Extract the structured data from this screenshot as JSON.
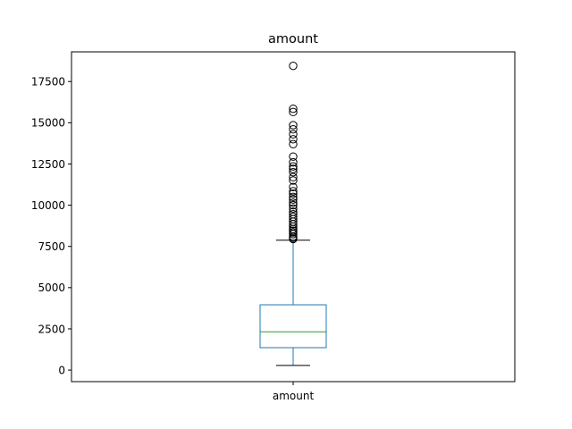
{
  "chart_data": {
    "type": "box",
    "title": "amount",
    "xlabel": "",
    "ylabel": "",
    "categories": [
      "amount"
    ],
    "ylim": [
      -700,
      19300
    ],
    "yticks": [
      0,
      2500,
      5000,
      7500,
      10000,
      12500,
      15000,
      17500
    ],
    "ytick_labels": [
      "0",
      "2500",
      "5000",
      "7500",
      "10000",
      "12500",
      "15000",
      "17500"
    ],
    "grid": false,
    "series": [
      {
        "box": {
          "whisker_low": 280,
          "q1": 1360,
          "median": 2320,
          "q3": 3960,
          "whisker_high": 7880
        },
        "outliers": [
          7950,
          8020,
          8100,
          8250,
          8350,
          8450,
          8550,
          8700,
          8850,
          9000,
          9150,
          9300,
          9450,
          9600,
          9800,
          10000,
          10150,
          10350,
          10500,
          10700,
          10850,
          11100,
          11500,
          11700,
          12000,
          12200,
          12350,
          12600,
          12950,
          13700,
          14000,
          14300,
          14600,
          14850,
          15650,
          15850,
          18450
        ]
      }
    ],
    "colors": {
      "box": "#1f77b4",
      "median": "#2ca02c",
      "whisker": "#1f77b4",
      "cap": "#000000",
      "outlier": "#000000",
      "axes": "#000000"
    }
  }
}
